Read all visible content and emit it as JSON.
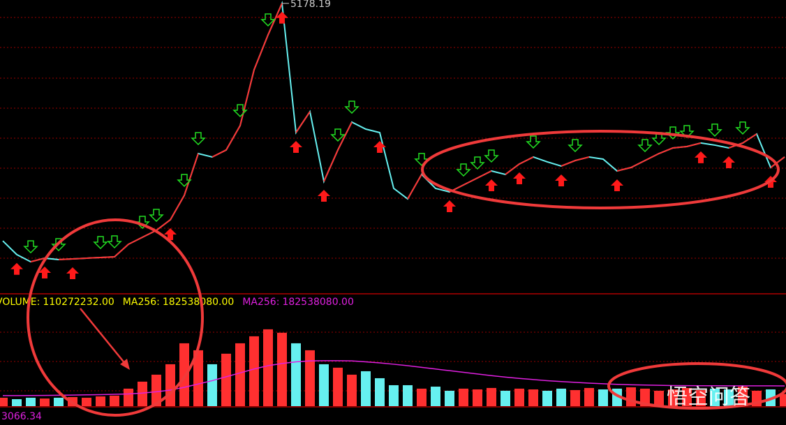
{
  "chart_data": [
    {
      "type": "line",
      "color": "#66f0f0",
      "up_color": "#ff3030",
      "values": [
        2220,
        2050,
        1960,
        2005,
        1987,
        1996,
        2005,
        2013,
        2022,
        2178,
        2265,
        2352,
        2483,
        2787,
        3308,
        3265,
        3352,
        3656,
        4351,
        4786,
        5178.19,
        3569,
        3830,
        2961,
        3352,
        3699,
        3612,
        3569,
        2874,
        2743,
        3048,
        2874,
        2830,
        2917,
        3004,
        3091,
        3048,
        3178,
        3265,
        3204,
        3152,
        3221,
        3265,
        3239,
        3091,
        3134,
        3221,
        3308,
        3378,
        3395,
        3439,
        3413,
        3378,
        3439,
        3552,
        3134,
        3265
      ],
      "ylim": [
        1570,
        5220
      ],
      "peak_label": "5178.19",
      "sell_signals": [
        2,
        4,
        7,
        8,
        10,
        11,
        13,
        14,
        17,
        19,
        24,
        25,
        30,
        33,
        34,
        35,
        38,
        41,
        46,
        47,
        48,
        49,
        51,
        53
      ],
      "buy_signals": [
        1,
        3,
        5,
        12,
        20,
        21,
        23,
        27,
        32,
        35,
        37,
        40,
        44,
        50,
        52,
        55
      ],
      "sell_color": "#22dd22",
      "buy_color": "#ff1a1a"
    },
    {
      "type": "bar",
      "series": [
        {
          "name": "VOLUME",
          "type": "bar",
          "values": [
            76000000,
            63000000,
            76000000,
            69000000,
            76000000,
            82000000,
            76000000,
            88000000,
            95000000,
            158000000,
            221000000,
            284000000,
            378000000,
            567000000,
            504000000,
            378000000,
            473000000,
            567000000,
            630000000,
            693000000,
            662000000,
            567000000,
            504000000,
            378000000,
            347000000,
            284000000,
            315000000,
            252000000,
            189000000,
            189000000,
            158000000,
            176000000,
            139000000,
            158000000,
            151000000,
            164000000,
            139000000,
            158000000,
            151000000,
            139000000,
            158000000,
            145000000,
            164000000,
            151000000,
            158000000,
            170000000,
            158000000,
            139000000,
            151000000,
            164000000,
            145000000,
            158000000,
            151000000,
            176000000,
            139000000,
            151000000,
            110272232
          ]
        },
        {
          "name": "MA256",
          "type": "line",
          "color": "#e020e0",
          "values": [
            95000000,
            95000000,
            96000000,
            97000000,
            98000000,
            100000000,
            102000000,
            104000000,
            107000000,
            110000000,
            118000000,
            130000000,
            145000000,
            170000000,
            200000000,
            230000000,
            265000000,
            300000000,
            335000000,
            365000000,
            385000000,
            400000000,
            408000000,
            410000000,
            410000000,
            408000000,
            400000000,
            390000000,
            378000000,
            365000000,
            350000000,
            335000000,
            320000000,
            305000000,
            290000000,
            275000000,
            262000000,
            250000000,
            240000000,
            230000000,
            222000000,
            215000000,
            208000000,
            202000000,
            197000000,
            193000000,
            190000000,
            188000000,
            186000000,
            185000000,
            184000000,
            184000000,
            183000000,
            183000000,
            183000000,
            183000000,
            182538080
          ]
        }
      ],
      "ylim": [
        0,
        900000000
      ],
      "readouts": [
        {
          "label": "VOLUME:",
          "value": "110272232.00",
          "color": "#ffff00"
        },
        {
          "label": "MA256:",
          "value": "182538080.00",
          "color": "#ffff00"
        },
        {
          "label": "MA256:",
          "value": "182538080.00",
          "color": "#e020e0"
        }
      ],
      "corner_label": "3066.34"
    }
  ],
  "watermark": "悟空问答"
}
